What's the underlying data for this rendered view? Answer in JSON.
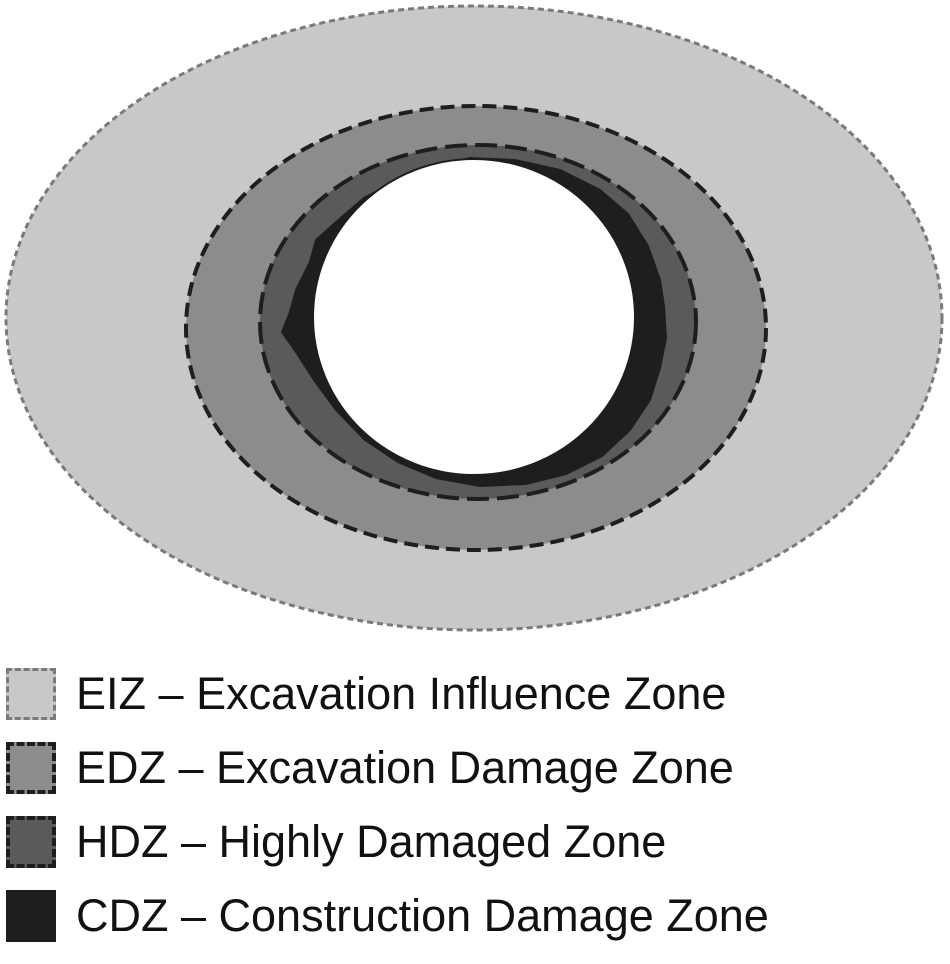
{
  "zones": [
    {
      "abbr": "EIZ",
      "separator": " – ",
      "name": "Excavation Influence Zone",
      "fill": "#c8c8c8",
      "stroke": "#7a7a7a",
      "stroke_style": "fine-dashed"
    },
    {
      "abbr": "EDZ",
      "separator": " – ",
      "name": "Excavation Damage Zone",
      "fill": "#8c8c8c",
      "stroke": "#1e1e1e",
      "stroke_style": "dashed"
    },
    {
      "abbr": "HDZ",
      "separator": " – ",
      "name": "Highly Damaged Zone",
      "fill": "#5a5a5a",
      "stroke": "#1e1e1e",
      "stroke_style": "long-dashed"
    },
    {
      "abbr": "CDZ",
      "separator": " – ",
      "name": "Construction Damage Zone",
      "fill": "#1e1e1e",
      "stroke": "#1e1e1e",
      "stroke_style": "solid"
    }
  ],
  "opening": {
    "fill": "#ffffff",
    "label": ""
  }
}
